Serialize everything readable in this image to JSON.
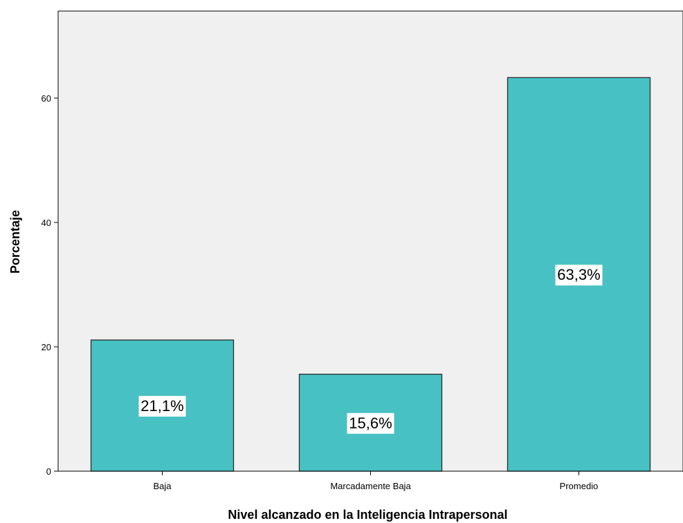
{
  "chart_data": {
    "type": "bar",
    "title": "",
    "xlabel": "Nivel alcanzado en la Inteligencia Intrapersonal",
    "ylabel": "Porcentaje",
    "categories": [
      "Baja",
      "Marcadamente Baja",
      "Promedio"
    ],
    "values": [
      21.1,
      15.6,
      63.3
    ],
    "data_labels": [
      "21,1%",
      "15,6%",
      "63,3%"
    ],
    "ylim": [
      0,
      74
    ],
    "yticks": [
      0,
      20,
      40,
      60
    ],
    "grid": false,
    "legend": "none",
    "colors": {
      "bar_fill": "#48C1C4",
      "bar_stroke": "#2b2b2b",
      "plot_background": "#F0F0F0",
      "label_box": "#ffffff"
    }
  }
}
